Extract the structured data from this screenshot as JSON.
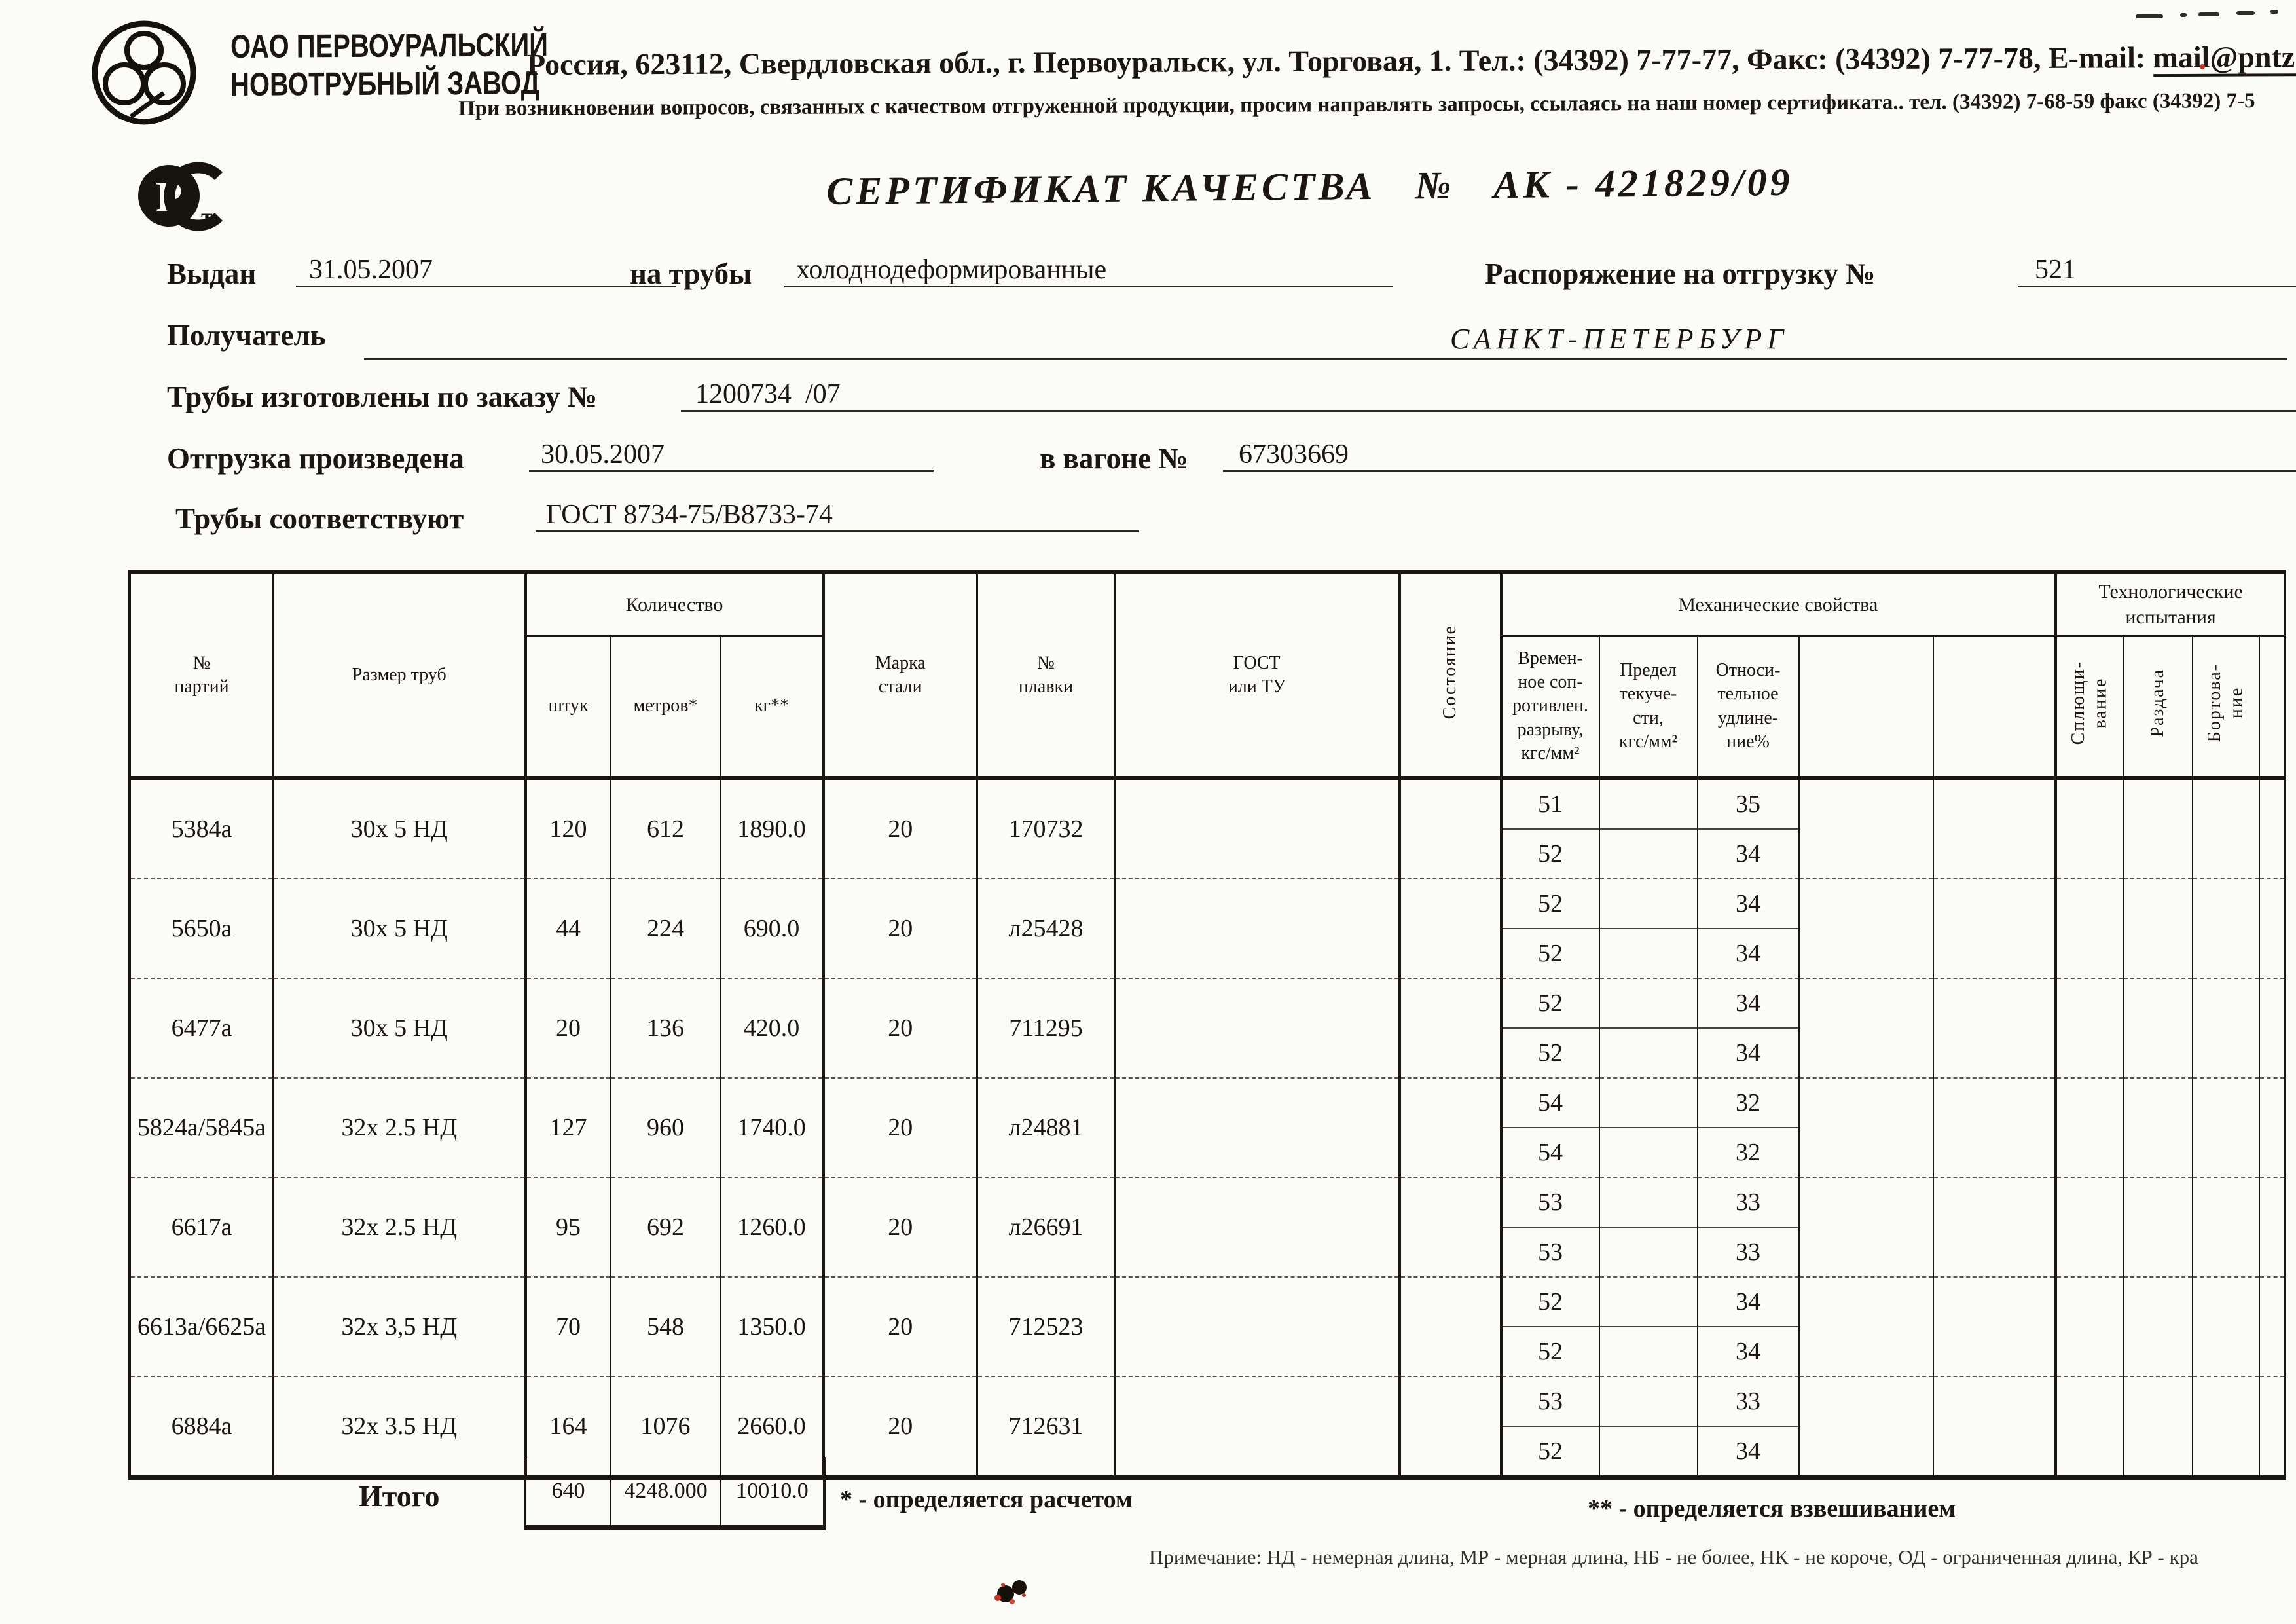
{
  "logos": {
    "factory_logo": "pipe-bundle-logo",
    "cert_mark": "rostest-pct-mark"
  },
  "header": {
    "org_line1": "ОАО ПЕРВОУРАЛЬСКИЙ",
    "org_line2": "НОВОТРУБНЫЙ  ЗАВОД",
    "address": "Россия, 623112, Свердловская обл., г. Первоуральск, ул. Торговая, 1. Тел.: (34392) 7-77-77, Факс: (34392) 7-77-78,",
    "email_label": "E-mail:",
    "email": "mail@pntz.com",
    "note": "При возникновении вопросов, связанных с качеством отгруженной продукции, просим направлять запросы, ссылаясь на наш номер сертификата.. тел. (34392) 7-68-59 факс (34392) 7-5"
  },
  "title": {
    "text": "СЕРТИФИКАТ КАЧЕСТВА",
    "num_sign": "№",
    "number": "АК - 421829/09"
  },
  "fields": {
    "issued_label": "Выдан",
    "issued_value": "31.05.2007",
    "pipes_label": "на трубы",
    "pipes_value": "холоднодеформированные",
    "ship_order_label": "Распоряжение на отгрузку №",
    "ship_order_value": "521",
    "receiver_label": "Получатель",
    "receiver_value": "САНКТ-ПЕТЕРБУРГ",
    "made_order_label": "Трубы изготовлены по заказу №",
    "made_order_value": "1200734  /07",
    "shipped_label": "Отгрузка произведена",
    "shipped_value": "30.05.2007",
    "wagon_label": "в вагоне №",
    "wagon_value": "67303669",
    "conform_label": "Трубы соответствуют",
    "conform_value": "ГОСТ 8734-75/В8733-74"
  },
  "table": {
    "headers": {
      "party": "№\nпартий",
      "size": "Размер труб",
      "qty_group": "Количество",
      "pcs": "штук",
      "meters": "метров*",
      "kg": "кг**",
      "steel": "Марка\nстали",
      "melt": "№\nплавки",
      "gost": "ГОСТ\nили ТУ",
      "state": "Состояние",
      "mech_group": "Механические свойства",
      "tensile": "Времен-\nное соп-\nротивлен.\nразрыву,\nкгс/мм²",
      "yield": "Предел\nтекуче-\nсти,\nкгс/мм²",
      "elong": "Относи-\nтельное\nудлине-\nние%",
      "tech_group": "Технологические\nиспытания",
      "flatten": "Сплющи-\nвание",
      "expand": "Раздача",
      "flange": "Бортова-\nние"
    },
    "rows": [
      {
        "party": "5384а",
        "size": "30х 5 НД",
        "pcs": "120",
        "meters": "612",
        "kg": "1890.0",
        "steel": "20",
        "melt": "170732",
        "mech": [
          [
            "51",
            "35"
          ],
          [
            "52",
            "34"
          ]
        ]
      },
      {
        "party": "5650а",
        "size": "30х 5 НД",
        "pcs": "44",
        "meters": "224",
        "kg": "690.0",
        "steel": "20",
        "melt": "л25428",
        "mech": [
          [
            "52",
            "34"
          ],
          [
            "52",
            "34"
          ]
        ]
      },
      {
        "party": "6477а",
        "size": "30х 5 НД",
        "pcs": "20",
        "meters": "136",
        "kg": "420.0",
        "steel": "20",
        "melt": "711295",
        "mech": [
          [
            "52",
            "34"
          ],
          [
            "52",
            "34"
          ]
        ]
      },
      {
        "party": "5824а/5845а",
        "size": "32х 2.5 НД",
        "pcs": "127",
        "meters": "960",
        "kg": "1740.0",
        "steel": "20",
        "melt": "л24881",
        "mech": [
          [
            "54",
            "32"
          ],
          [
            "54",
            "32"
          ]
        ]
      },
      {
        "party": "6617а",
        "size": "32х 2.5 НД",
        "pcs": "95",
        "meters": "692",
        "kg": "1260.0",
        "steel": "20",
        "melt": "л26691",
        "mech": [
          [
            "53",
            "33"
          ],
          [
            "53",
            "33"
          ]
        ]
      },
      {
        "party": "6613а/6625а",
        "size": "32х 3,5 НД",
        "pcs": "70",
        "meters": "548",
        "kg": "1350.0",
        "steel": "20",
        "melt": "712523",
        "mech": [
          [
            "52",
            "34"
          ],
          [
            "52",
            "34"
          ]
        ]
      },
      {
        "party": "6884а",
        "size": "32х 3.5 НД",
        "pcs": "164",
        "meters": "1076",
        "kg": "2660.0",
        "steel": "20",
        "melt": "712631",
        "mech": [
          [
            "53",
            "33"
          ],
          [
            "52",
            "34"
          ]
        ]
      }
    ],
    "totals": {
      "label": "Итого",
      "pcs": "640",
      "meters": "4248.000",
      "kg": "10010.0"
    },
    "footnotes": {
      "calc": "* - определяется расчетом",
      "weigh": "** - определяется взвешиванием"
    },
    "note": "Примечание: НД - немерная длина, МР - мерная длина, НБ - не более, НК - не короче, ОД - ограниченная длина, КР - кра"
  }
}
